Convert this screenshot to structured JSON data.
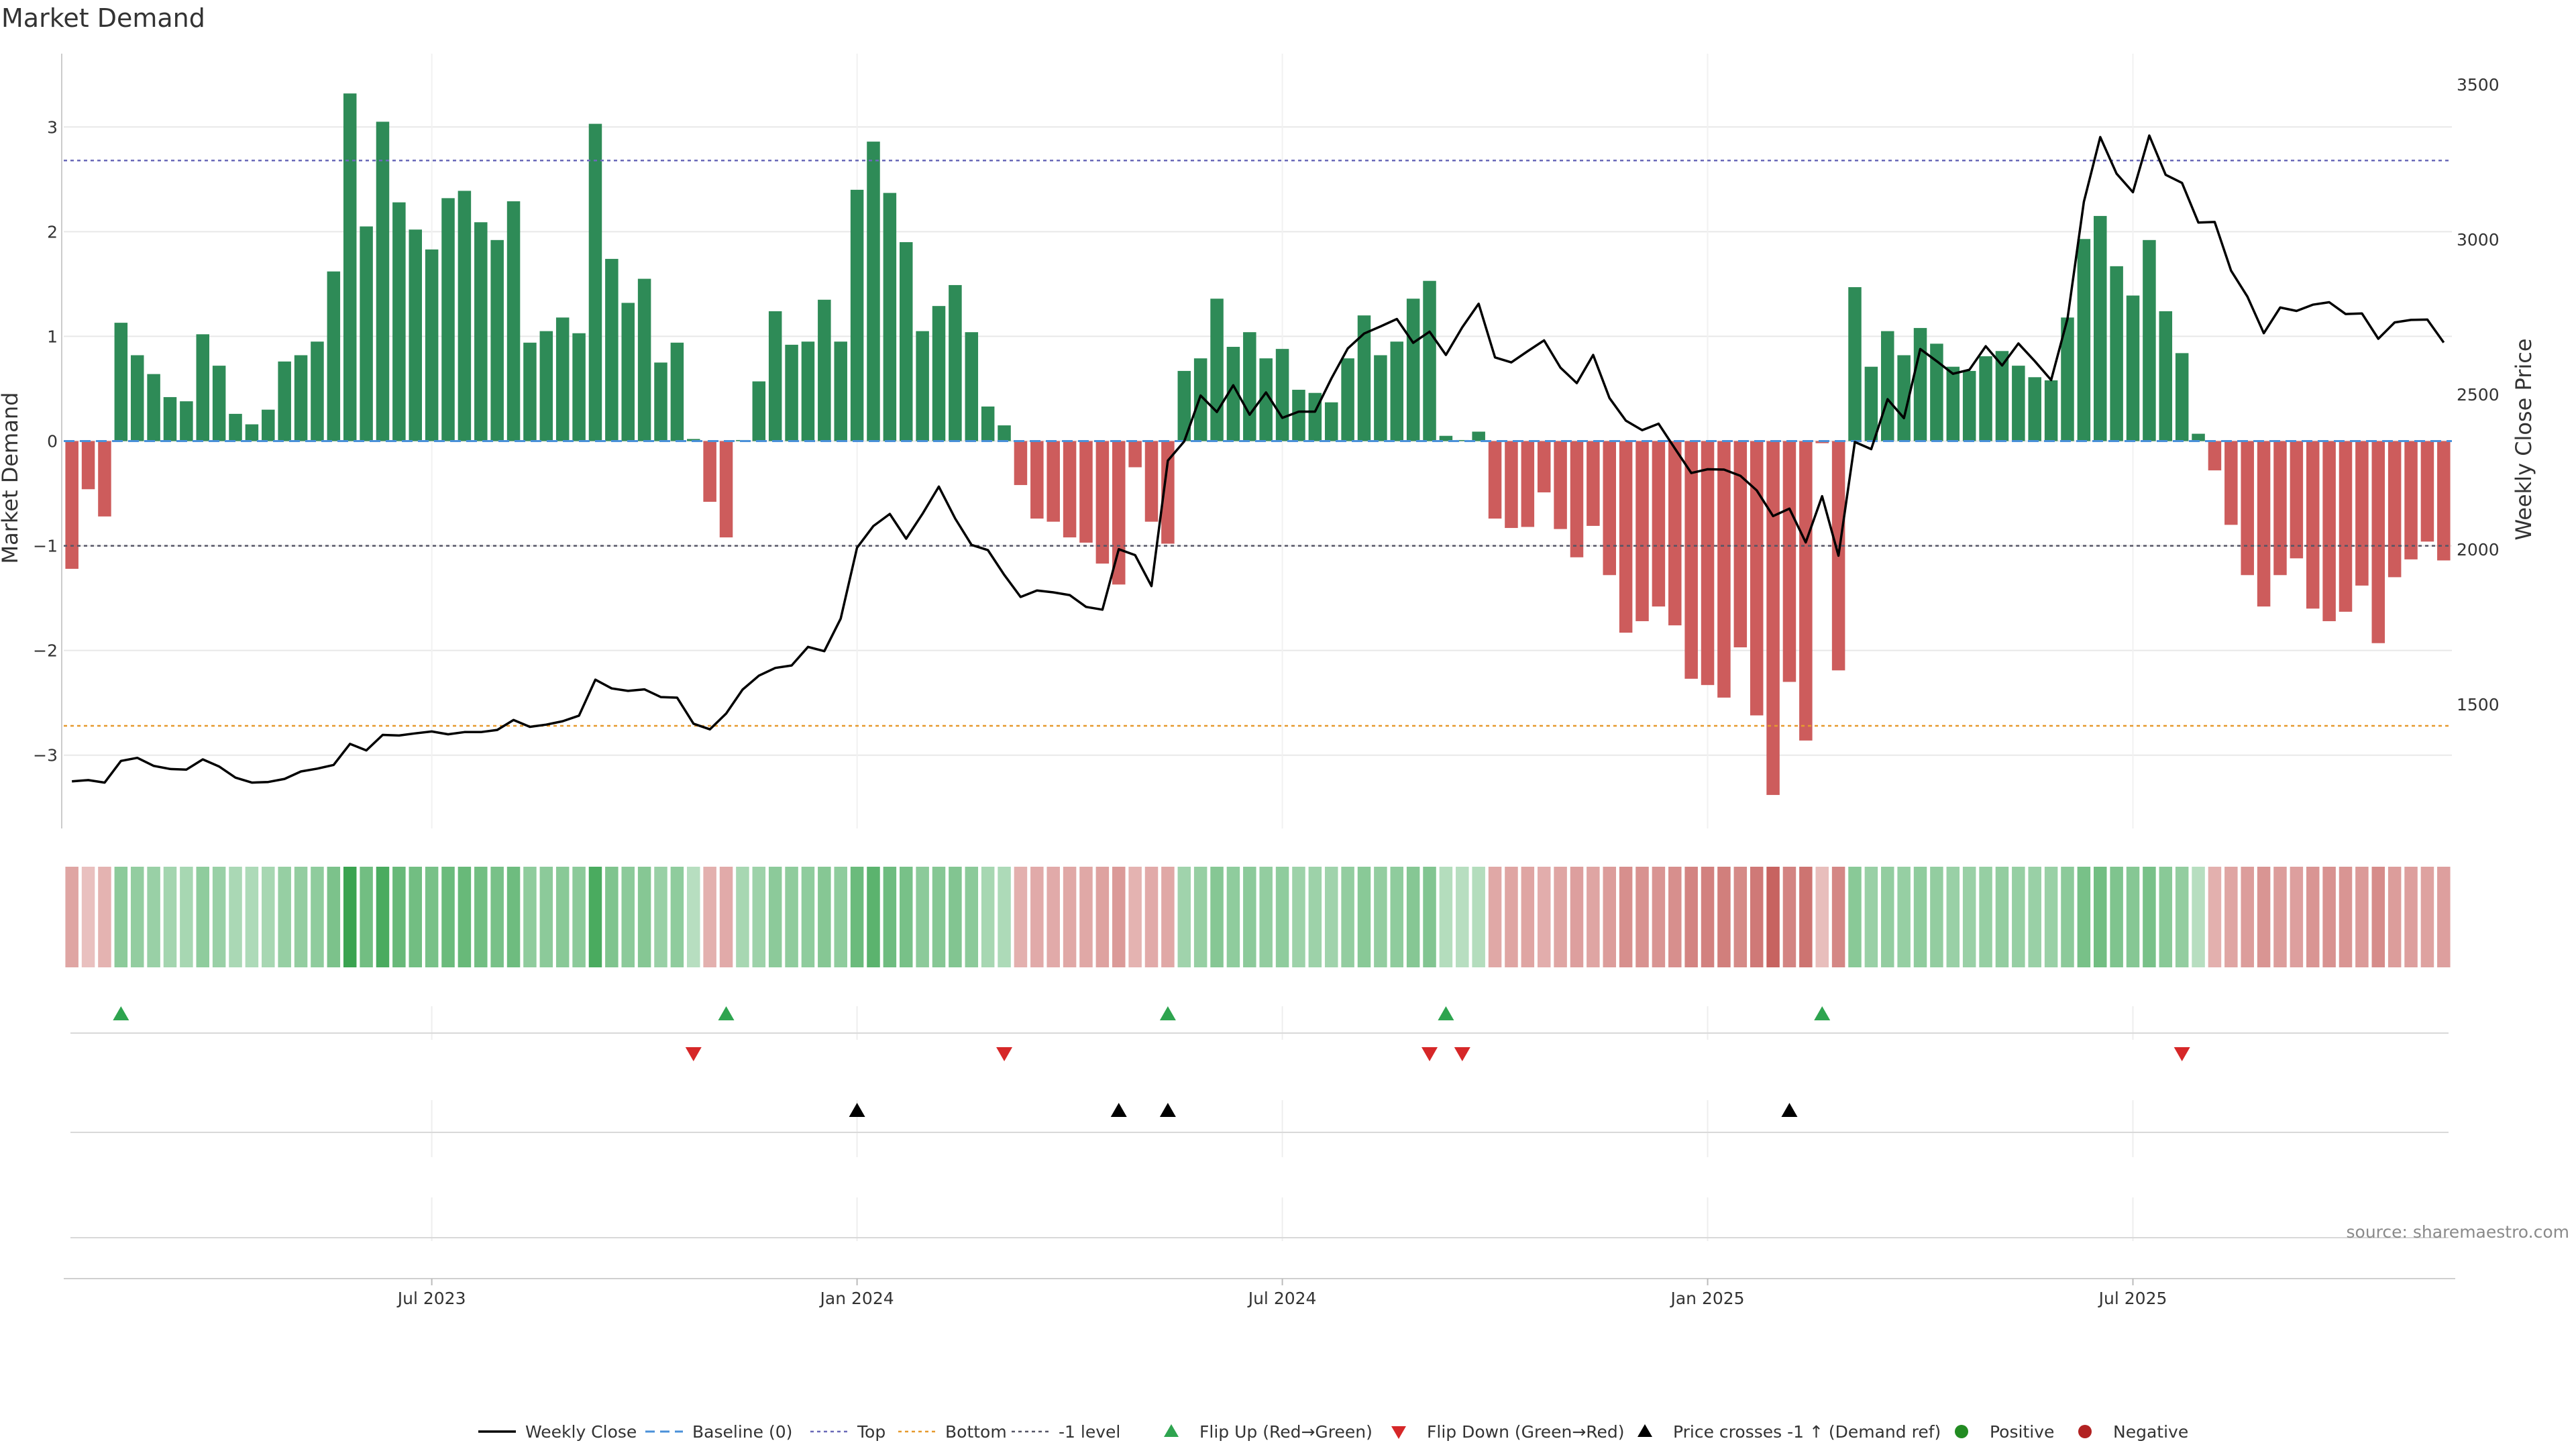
{
  "chart_data": {
    "type": "bar",
    "title": "Market Demand",
    "ylabel_left": "Market Demand",
    "ylabel_right": "Weekly Close Price",
    "left_ylim": [
      -3.7,
      3.7
    ],
    "right_ylim": [
      1100,
      3600
    ],
    "left_ticks": [
      3,
      2,
      1,
      0,
      -1,
      -2,
      -3
    ],
    "left_tick_labels": [
      "3",
      "2",
      "1",
      "0",
      "−1",
      "−2",
      "−3"
    ],
    "right_ticks": [
      3500,
      3000,
      2500,
      2000,
      1500
    ],
    "right_tick_labels": [
      "3500",
      "3000",
      "2500",
      "2000",
      "1500"
    ],
    "x_ticks": [
      {
        "label": "Jul 2023",
        "week": 22
      },
      {
        "label": "Jan 2024",
        "week": 48
      },
      {
        "label": "Jul 2024",
        "week": 74
      },
      {
        "label": "Jan 2025",
        "week": 100
      },
      {
        "label": "Jul 2025",
        "week": 126
      }
    ],
    "ref_lines": {
      "top": 2.68,
      "bottom": -2.72,
      "minus_one": -1.0,
      "baseline": 0
    },
    "demand": [
      -1.22,
      -0.46,
      -0.72,
      1.13,
      0.82,
      0.64,
      0.42,
      0.38,
      1.02,
      0.72,
      0.26,
      0.16,
      0.3,
      0.76,
      0.82,
      0.95,
      1.62,
      3.32,
      2.05,
      3.05,
      2.28,
      2.02,
      1.83,
      2.32,
      2.39,
      2.09,
      1.92,
      2.29,
      0.94,
      1.05,
      1.18,
      1.03,
      3.03,
      1.74,
      1.32,
      1.55,
      0.75,
      0.94,
      0.02,
      -0.58,
      -0.92,
      0.01,
      0.57,
      1.24,
      0.92,
      0.95,
      1.35,
      0.95,
      2.4,
      2.86,
      2.37,
      1.9,
      1.05,
      1.29,
      1.49,
      1.04,
      0.33,
      0.15,
      -0.42,
      -0.74,
      -0.77,
      -0.92,
      -0.97,
      -1.17,
      -1.37,
      -0.25,
      -0.77,
      -0.98,
      0.67,
      0.79,
      1.36,
      0.9,
      1.04,
      0.79,
      0.88,
      0.49,
      0.46,
      0.37,
      0.79,
      1.2,
      0.82,
      0.95,
      1.36,
      1.53,
      0.05,
      0.01,
      0.09,
      -0.74,
      -0.83,
      -0.82,
      -0.49,
      -0.84,
      -1.11,
      -0.81,
      -1.28,
      -1.83,
      -1.72,
      -1.58,
      -1.76,
      -2.27,
      -2.33,
      -2.45,
      -1.97,
      -2.62,
      -3.38,
      -2.3,
      -2.86,
      -0.02,
      -2.19,
      1.47,
      0.71,
      1.05,
      0.82,
      1.08,
      0.93,
      0.71,
      0.67,
      0.81,
      0.86,
      0.72,
      0.61,
      0.58,
      1.18,
      1.93,
      2.15,
      1.67,
      1.39,
      1.92,
      1.24,
      0.84,
      0.07,
      -0.28,
      -0.8,
      -1.28,
      -1.58,
      -1.28,
      -1.12,
      -1.6,
      -1.72,
      -1.63,
      -1.38,
      -1.93,
      -1.3,
      -1.13,
      -0.96,
      -1.14
    ],
    "price": [
      1252,
      1256,
      1248,
      1318,
      1328,
      1302,
      1292,
      1290,
      1323,
      1300,
      1264,
      1248,
      1250,
      1260,
      1284,
      1293,
      1305,
      1373,
      1352,
      1402,
      1400,
      1407,
      1413,
      1404,
      1411,
      1411,
      1418,
      1450,
      1428,
      1435,
      1446,
      1464,
      1580,
      1552,
      1544,
      1549,
      1524,
      1522,
      1438,
      1420,
      1471,
      1548,
      1593,
      1618,
      1626,
      1686,
      1672,
      1777,
      2006,
      2076,
      2115,
      2035,
      2115,
      2203,
      2100,
      2015,
      1998,
      1918,
      1847,
      1868,
      1862,
      1853,
      1815,
      1806,
      2001,
      1982,
      1882,
      2287,
      2349,
      2497,
      2444,
      2530,
      2435,
      2507,
      2425,
      2445,
      2445,
      2552,
      2649,
      2697,
      2720,
      2744,
      2667,
      2703,
      2628,
      2717,
      2793,
      2620,
      2604,
      2640,
      2675,
      2587,
      2537,
      2628,
      2489,
      2416,
      2385,
      2406,
      2326,
      2247,
      2259,
      2258,
      2238,
      2191,
      2108,
      2132,
      2023,
      2172,
      1980,
      2347,
      2324,
      2485,
      2424,
      2647,
      2608,
      2567,
      2580,
      2656,
      2594,
      2665,
      2608,
      2547,
      2745,
      3122,
      3331,
      3213,
      3153,
      3336,
      3209,
      3183,
      3055,
      3057,
      2900,
      2816,
      2698,
      2781,
      2770,
      2790,
      2798,
      2760,
      2762,
      2680,
      2733,
      2741,
      2742,
      2668
    ],
    "heat_intensity": [
      0.38,
      0.18,
      0.28,
      0.46,
      0.42,
      0.38,
      0.32,
      0.3,
      0.44,
      0.38,
      0.28,
      0.26,
      0.3,
      0.4,
      0.42,
      0.44,
      0.56,
      0.96,
      0.62,
      0.86,
      0.68,
      0.62,
      0.58,
      0.66,
      0.68,
      0.62,
      0.58,
      0.64,
      0.44,
      0.46,
      0.48,
      0.46,
      0.86,
      0.54,
      0.46,
      0.5,
      0.38,
      0.44,
      0.2,
      0.3,
      0.34,
      0.3,
      0.36,
      0.46,
      0.44,
      0.44,
      0.5,
      0.44,
      0.66,
      0.76,
      0.64,
      0.58,
      0.46,
      0.5,
      0.52,
      0.46,
      0.3,
      0.26,
      0.3,
      0.34,
      0.34,
      0.36,
      0.36,
      0.4,
      0.46,
      0.28,
      0.34,
      0.36,
      0.34,
      0.4,
      0.5,
      0.44,
      0.46,
      0.42,
      0.44,
      0.36,
      0.36,
      0.34,
      0.42,
      0.48,
      0.42,
      0.44,
      0.5,
      0.52,
      0.22,
      0.2,
      0.22,
      0.36,
      0.38,
      0.38,
      0.32,
      0.38,
      0.42,
      0.38,
      0.44,
      0.54,
      0.52,
      0.5,
      0.54,
      0.62,
      0.64,
      0.66,
      0.58,
      0.7,
      0.86,
      0.62,
      0.74,
      0.2,
      0.6,
      0.48,
      0.38,
      0.42,
      0.4,
      0.44,
      0.42,
      0.38,
      0.38,
      0.4,
      0.42,
      0.4,
      0.38,
      0.38,
      0.46,
      0.58,
      0.62,
      0.54,
      0.5,
      0.58,
      0.48,
      0.42,
      0.2,
      0.3,
      0.38,
      0.44,
      0.5,
      0.44,
      0.42,
      0.5,
      0.52,
      0.5,
      0.46,
      0.56,
      0.44,
      0.42,
      0.4,
      0.42
    ],
    "flip_up_weeks": [
      3,
      40,
      67,
      84,
      107
    ],
    "flip_down_weeks": [
      38,
      57,
      83,
      85,
      129
    ],
    "price_cross_weeks": [
      48,
      64,
      67,
      105
    ],
    "legend": [
      {
        "key": "weekly_close",
        "label": "Weekly Close"
      },
      {
        "key": "baseline",
        "label": "Baseline (0)"
      },
      {
        "key": "top",
        "label": "Top"
      },
      {
        "key": "bottom",
        "label": "Bottom"
      },
      {
        "key": "minus_one",
        "label": "-1 level"
      },
      {
        "key": "flip_up",
        "label": "Flip Up (Red→Green)"
      },
      {
        "key": "flip_down",
        "label": "Flip Down (Green→Red)"
      },
      {
        "key": "price_cross",
        "label": "Price crosses -1 ↑ (Demand ref)"
      },
      {
        "key": "positive",
        "label": "Positive"
      },
      {
        "key": "negative",
        "label": "Negative"
      }
    ],
    "source": "source: sharemaestro.com"
  },
  "colors": {
    "bar_positive": "#2e8b57",
    "bar_negative": "#cd5c5c",
    "price_line": "#000000",
    "top_line": "#6a6ab8",
    "bottom_line": "#e69a2e",
    "minus_one_line": "#555566",
    "baseline": "#4a90d9",
    "flip_up": "#2ea44f",
    "flip_down": "#d62728",
    "price_cross": "#000000",
    "positive_dot": "#228b22",
    "negative_dot": "#b22222",
    "grid": "#e8e8e8",
    "axis": "#cccccc",
    "heat_green_dark": "#33a04a",
    "heat_green_light": "#d8eede",
    "heat_red_dark": "#c0504d",
    "heat_red_light": "#f2d9d8"
  }
}
